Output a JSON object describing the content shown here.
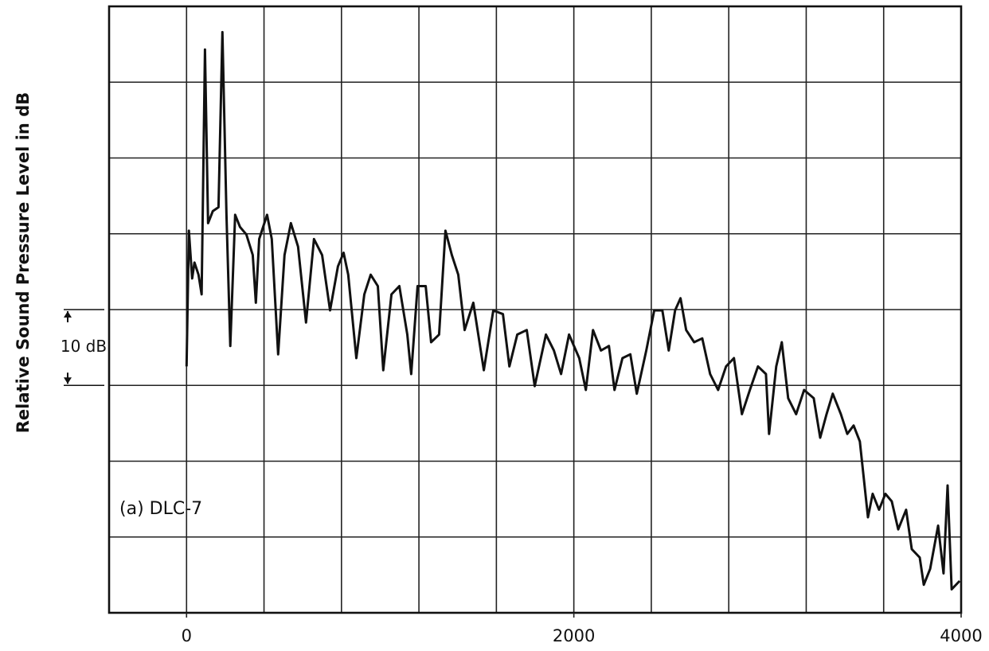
{
  "chart_data": {
    "type": "line",
    "y_label": "Relative Sound Pressure Level in dB",
    "annotation": "(a) DLC-7",
    "scale_bar": {
      "label": "10 dB",
      "from": 30,
      "to": 40
    },
    "color": "#111111",
    "xlim": [
      -400,
      4000
    ],
    "ylim": [
      0,
      80
    ],
    "xticks": [
      0,
      2000,
      4000
    ],
    "xgrid": [
      -400,
      0,
      400,
      800,
      1200,
      1600,
      2000,
      2400,
      2800,
      3200,
      3600,
      4000
    ],
    "ygrid": [
      10,
      20,
      30,
      40,
      50,
      60,
      70
    ],
    "x": [
      0,
      12,
      29,
      41,
      62,
      78,
      95,
      111,
      136,
      165,
      185,
      206,
      226,
      251,
      276,
      309,
      342,
      358,
      375,
      416,
      440,
      473,
      506,
      539,
      576,
      617,
      658,
      700,
      741,
      782,
      811,
      835,
      877,
      918,
      951,
      988,
      1016,
      1058,
      1099,
      1140,
      1160,
      1193,
      1235,
      1263,
      1304,
      1337,
      1370,
      1403,
      1436,
      1481,
      1535,
      1584,
      1634,
      1667,
      1708,
      1757,
      1798,
      1856,
      1897,
      1934,
      1975,
      2028,
      2062,
      2099,
      2140,
      2181,
      2210,
      2251,
      2292,
      2325,
      2374,
      2415,
      2457,
      2490,
      2523,
      2551,
      2580,
      2621,
      2663,
      2704,
      2745,
      2786,
      2827,
      2868,
      2909,
      2951,
      2992,
      3008,
      3045,
      3074,
      3107,
      3148,
      3189,
      3239,
      3272,
      3305,
      3337,
      3379,
      3412,
      3445,
      3477,
      3519,
      3543,
      3576,
      3609,
      3642,
      3675,
      3716,
      3745,
      3786,
      3807,
      3840,
      3881,
      3909,
      3930,
      3951,
      3992
    ],
    "values": [
      32.5,
      50.4,
      44.1,
      46.2,
      44.6,
      42,
      74.3,
      51.4,
      53,
      53.5,
      76.6,
      52.5,
      35.2,
      52.5,
      50.9,
      49.9,
      47.2,
      40.9,
      49.3,
      52.5,
      49.3,
      34.1,
      47.2,
      51.4,
      48.3,
      38.3,
      49.3,
      47.2,
      39.9,
      45.7,
      47.5,
      44.6,
      33.6,
      42,
      44.6,
      43.1,
      32,
      42,
      43.1,
      36.7,
      31.5,
      43.1,
      43.1,
      35.7,
      36.7,
      50.4,
      47.2,
      44.6,
      37.3,
      40.9,
      32,
      39.9,
      39.4,
      32.5,
      36.7,
      37.3,
      29.9,
      36.7,
      34.6,
      31.5,
      36.7,
      33.6,
      29.4,
      37.3,
      34.6,
      35.2,
      29.4,
      33.6,
      34.1,
      28.9,
      34.6,
      39.9,
      39.9,
      34.6,
      39.9,
      41.5,
      37.3,
      35.7,
      36.2,
      31.5,
      29.4,
      32.5,
      33.6,
      26.2,
      29.4,
      32.5,
      31.5,
      23.6,
      32.5,
      35.7,
      28.3,
      26.2,
      29.4,
      28.3,
      23.1,
      26.2,
      28.9,
      26.2,
      23.6,
      24.7,
      22.6,
      12.6,
      15.7,
      13.6,
      15.7,
      14.7,
      11,
      13.6,
      8.4,
      7.3,
      3.7,
      5.8,
      11.5,
      5.2,
      16.8,
      3.1,
      4.2
    ]
  }
}
